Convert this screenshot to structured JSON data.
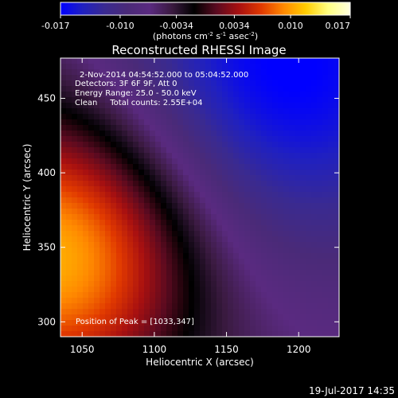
{
  "chart_data": {
    "type": "heatmap",
    "title": "Reconstructed RHESSI Image",
    "xlabel": "Heliocentric X (arcsec)",
    "ylabel": "Heliocentric Y (arcsec)",
    "xlim": [
      1035,
      1228
    ],
    "ylim": [
      290,
      477
    ],
    "xticks": [
      1050,
      1100,
      1150,
      1200
    ],
    "yticks": [
      300,
      350,
      400,
      450
    ],
    "colorbar": {
      "min": -0.017,
      "max": 0.017,
      "ticks": [
        "-0.017",
        "-0.010",
        "-0.0034",
        "0.0034",
        "0.010",
        "0.017"
      ],
      "unit_label_parts": [
        "(photons cm",
        "-2",
        " s",
        "-1",
        " asec",
        "-2",
        ")"
      ],
      "colormap": [
        "#0000ff",
        "#2020c0",
        "#3a2a90",
        "#4a2a78",
        "#5a2a80",
        "#3a1a40",
        "#000000",
        "#5a0a20",
        "#a81010",
        "#e03800",
        "#ff8800",
        "#ffcc00",
        "#ffff80",
        "#ffffe0"
      ]
    },
    "annotations": [
      "2-Nov-2014 04:54:52.000 to 05:04:52.000",
      "Detectors: 3F 6F 9F, Att 0",
      "Energy Range: 25.0 - 50.0 keV",
      "Clean     Total counts: 2.55E+04",
      "Position of Peak = [1033,347]"
    ],
    "peak": {
      "x": 1033,
      "y": 347,
      "value": 0.017
    },
    "footer_date": "19-Jul-2017 14:35"
  }
}
